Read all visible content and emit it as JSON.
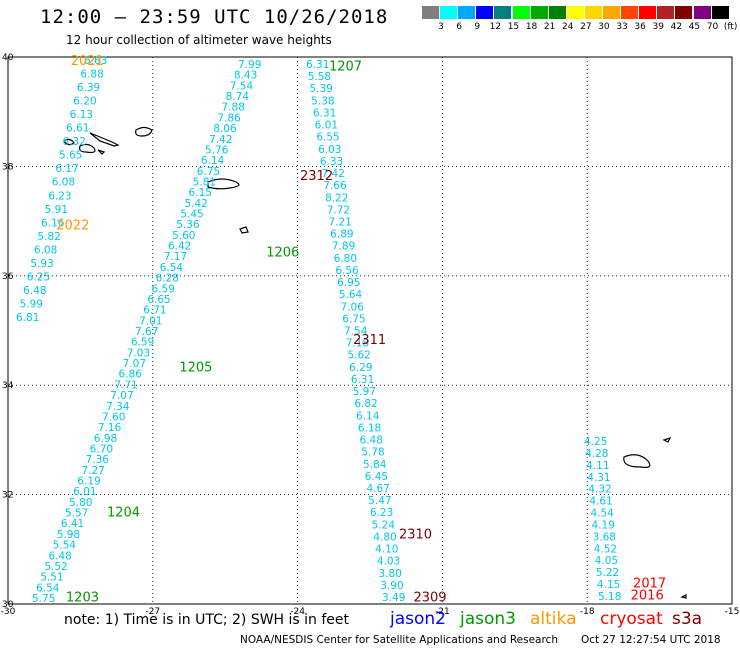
{
  "header": {
    "title": "12:00 – 23:59 UTC 10/26/2018",
    "subtitle": "12 hour collection of altimeter wave heights"
  },
  "colorbar": {
    "labels": [
      "3",
      "6",
      "9",
      "12",
      "15",
      "18",
      "21",
      "24",
      "27",
      "30",
      "33",
      "36",
      "39",
      "42",
      "45",
      "70",
      "(ft)"
    ],
    "colors": [
      "#7f7f7f",
      "#00ffff",
      "#00aaff",
      "#0000ff",
      "#008080",
      "#00ff00",
      "#00aa00",
      "#008000",
      "#ffff00",
      "#ffd700",
      "#ffa500",
      "#ff4500",
      "#ff0000",
      "#b22222",
      "#800000",
      "#800080",
      "#000000"
    ]
  },
  "map": {
    "lon_ticks": [
      "-30",
      "-27",
      "-24",
      "-21",
      "-18",
      "-15"
    ],
    "lat_ticks": [
      "40",
      "38",
      "36",
      "34",
      "32",
      "30"
    ],
    "lon_range": [
      -30,
      -15
    ],
    "lat_range": [
      30,
      40
    ],
    "grid": "dotted",
    "tracks": [
      {
        "id": "t2021",
        "label": "2021",
        "label_color": "#ff9900",
        "lon": -30,
        "lat": 40,
        "direction": "sw",
        "points": [
          {
            "lat": 39.87,
            "v": "6.63"
          },
          {
            "lat": 39.67,
            "v": "6.88"
          },
          {
            "lat": 39.47,
            "v": "6.39"
          },
          {
            "lat": 39.27,
            "v": "6.20"
          },
          {
            "lat": 39.07,
            "v": "6.13"
          },
          {
            "lat": 38.87,
            "v": "6.61"
          },
          {
            "lat": 38.67,
            "v": "6.32"
          },
          {
            "lat": 38.47,
            "v": "5.65"
          },
          {
            "lat": 38.27,
            "v": "6.17"
          },
          {
            "lat": 38.07,
            "v": "6.08"
          },
          {
            "lat": 37.87,
            "v": "6.23"
          },
          {
            "lat": 37.67,
            "v": "5.91"
          },
          {
            "lat": 37.47,
            "v": "6.16"
          },
          {
            "lat": 37.27,
            "v": "5.82"
          },
          {
            "lat": 37.07,
            "v": "6.08"
          },
          {
            "lat": 36.87,
            "v": "5.93"
          },
          {
            "lat": 36.67,
            "v": "6.25"
          },
          {
            "lat": 36.47,
            "v": "6.48"
          },
          {
            "lat": 36.27,
            "v": "5.99"
          },
          {
            "lat": 36.07,
            "v": "6.81"
          }
        ]
      },
      {
        "id": "t2022",
        "label": "2022",
        "label_color": "#ff9900"
      },
      {
        "id": "t1207",
        "label": "1207",
        "label_color": "#009900",
        "points": [
          {
            "v": "7.99"
          },
          {
            "v": "8.43"
          },
          {
            "v": "7.54"
          },
          {
            "v": "8.74"
          },
          {
            "v": "7.88"
          },
          {
            "v": "7.86"
          },
          {
            "v": "8.06"
          },
          {
            "v": "7.42"
          },
          {
            "v": "5.76"
          },
          {
            "v": "6.14"
          },
          {
            "v": "6.75"
          },
          {
            "v": "5.81"
          },
          {
            "v": "6.15"
          },
          {
            "v": "5.42"
          },
          {
            "v": "5.45"
          },
          {
            "v": "5.36"
          },
          {
            "v": "5.60"
          },
          {
            "v": "6.42"
          },
          {
            "v": "7.17"
          },
          {
            "v": "6.54"
          },
          {
            "v": "6.28"
          },
          {
            "v": "6.59"
          },
          {
            "v": "6.65"
          },
          {
            "v": "6.71"
          },
          {
            "v": "7.01"
          },
          {
            "v": "7.67"
          },
          {
            "v": "6.59"
          },
          {
            "v": "7.03"
          },
          {
            "v": "7.07"
          },
          {
            "v": "6.86"
          },
          {
            "v": "7.71"
          },
          {
            "v": "7.07"
          },
          {
            "v": "7.34"
          },
          {
            "v": "7.60"
          },
          {
            "v": "7.16"
          },
          {
            "v": "6.98"
          },
          {
            "v": "6.70"
          },
          {
            "v": "7.36"
          },
          {
            "v": "7.27"
          },
          {
            "v": "6.19"
          },
          {
            "v": "6.01"
          },
          {
            "v": "5.80"
          },
          {
            "v": "5.57"
          },
          {
            "v": "6.41"
          },
          {
            "v": "5.98"
          },
          {
            "v": "5.54"
          },
          {
            "v": "6.48"
          },
          {
            "v": "5.52"
          },
          {
            "v": "5.51"
          },
          {
            "v": "6.54"
          },
          {
            "v": "5.75"
          }
        ]
      },
      {
        "id": "t1206",
        "label": "1206",
        "label_color": "#009900",
        "points": [
          {
            "v": "6.31"
          },
          {
            "v": "5.58"
          },
          {
            "v": "5.39"
          },
          {
            "v": "5.38"
          },
          {
            "v": "6.31"
          },
          {
            "v": "6.01"
          },
          {
            "v": "6.55"
          },
          {
            "v": "6.03"
          },
          {
            "v": "6.33"
          },
          {
            "v": "7.42"
          },
          {
            "v": "7.66"
          },
          {
            "v": "8.22"
          },
          {
            "v": "7.72"
          },
          {
            "v": "7.21"
          },
          {
            "v": "6.89"
          },
          {
            "v": "7.89"
          },
          {
            "v": "6.80"
          },
          {
            "v": "6.56"
          },
          {
            "v": "6.95"
          },
          {
            "v": "5.64"
          },
          {
            "v": "7.06"
          },
          {
            "v": "6.75"
          },
          {
            "v": "7.54"
          },
          {
            "v": "7.18"
          },
          {
            "v": "5.62"
          },
          {
            "v": "6.29"
          },
          {
            "v": "6.31"
          },
          {
            "v": "5.97"
          },
          {
            "v": "6.82"
          },
          {
            "v": "6.14"
          },
          {
            "v": "6.18"
          },
          {
            "v": "6.48"
          },
          {
            "v": "5.78"
          },
          {
            "v": "5.84"
          },
          {
            "v": "6.45"
          },
          {
            "v": "4.67"
          },
          {
            "v": "5.47"
          },
          {
            "v": "6.23"
          },
          {
            "v": "5.24"
          },
          {
            "v": "4.80"
          },
          {
            "v": "4.10"
          },
          {
            "v": "4.03"
          },
          {
            "v": "3.80"
          },
          {
            "v": "3.90"
          },
          {
            "v": "3.49"
          }
        ]
      },
      {
        "id": "t2017",
        "points": [
          {
            "v": "4.25"
          },
          {
            "v": "4.28"
          },
          {
            "v": "4.11"
          },
          {
            "v": "4.31"
          },
          {
            "v": "4.32"
          },
          {
            "v": "4.61"
          },
          {
            "v": "4.54"
          },
          {
            "v": "4.19"
          },
          {
            "v": "3.68"
          },
          {
            "v": "4.52"
          },
          {
            "v": "4.05"
          },
          {
            "v": "5.22"
          },
          {
            "v": "4.15"
          },
          {
            "v": "5.18"
          }
        ]
      }
    ],
    "labels": [
      {
        "text": "2021",
        "color": "#ff9900",
        "lon": -28.7,
        "lat": 39.85
      },
      {
        "text": "2022",
        "color": "#ff9900",
        "lon": -29.0,
        "lat": 36.85
      },
      {
        "text": "1207",
        "color": "#009900",
        "lon": -23.35,
        "lat": 39.75
      },
      {
        "text": "2312",
        "color": "#800000",
        "lon": -23.95,
        "lat": 37.75
      },
      {
        "text": "1206",
        "color": "#009900",
        "lon": -24.65,
        "lat": 36.35
      },
      {
        "text": "2311",
        "color": "#800000",
        "lon": -22.85,
        "lat": 34.75
      },
      {
        "text": "1205",
        "color": "#009900",
        "lon": -26.45,
        "lat": 34.25
      },
      {
        "text": "1204",
        "color": "#009900",
        "lon": -27.95,
        "lat": 31.6
      },
      {
        "text": "2310",
        "color": "#800000",
        "lon": -21.9,
        "lat": 31.2
      },
      {
        "text": "1203",
        "color": "#009900",
        "lon": -28.8,
        "lat": 30.05
      },
      {
        "text": "2309",
        "color": "#800000",
        "lon": -21.6,
        "lat": 30.05
      },
      {
        "text": "2017",
        "color": "#ff0000",
        "lon": -17.05,
        "lat": 30.3
      },
      {
        "text": "2016",
        "color": "#ff0000",
        "lon": -17.1,
        "lat": 30.08
      }
    ]
  },
  "footer": {
    "note": "note:  1) Time is in UTC;  2) SWH is in feet",
    "missions": [
      {
        "name": "jason2",
        "color": "#0000ff"
      },
      {
        "name": "jason3",
        "color": "#009900"
      },
      {
        "name": "altika",
        "color": "#ff9900"
      },
      {
        "name": "cryosat",
        "color": "#ff0000"
      },
      {
        "name": "s3a",
        "color": "#800000"
      }
    ],
    "credit": "NOAA/NESDIS Center for Satellite Applications and Research",
    "timestamp": "Oct 27 12:27:54 UTC 2018"
  }
}
